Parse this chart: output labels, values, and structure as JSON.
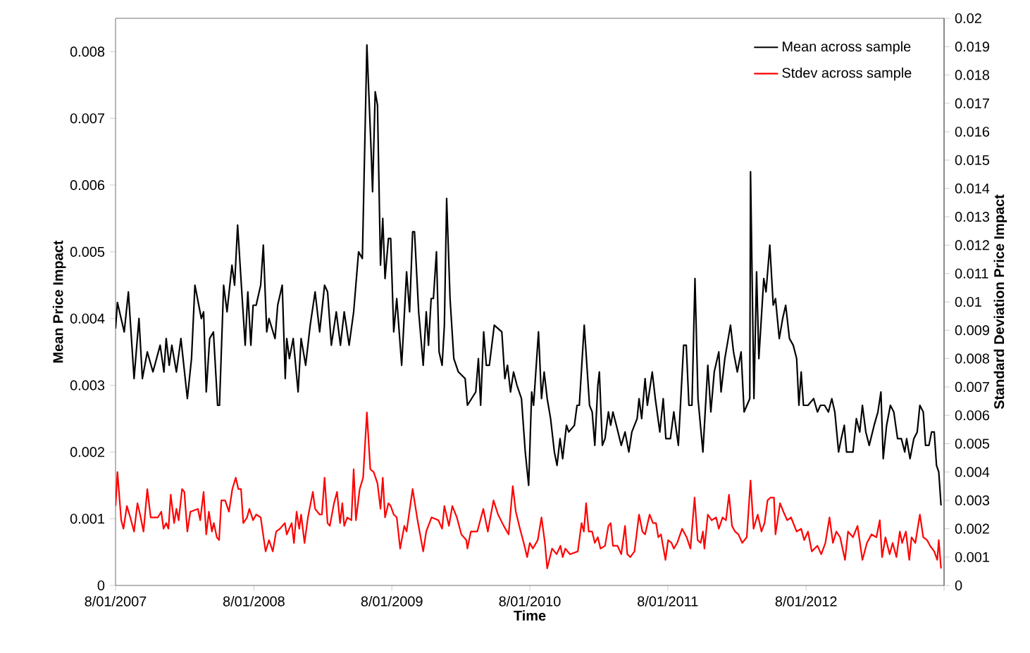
{
  "chart_data": {
    "type": "line",
    "xlabel": "Time",
    "ylabel": "Mean Price Impact",
    "y2label": "Standard Deviation Price Impact",
    "legend": "top right",
    "grid": false,
    "xlim": [
      "2007-08-01",
      "2013-08-01"
    ],
    "xticks": [
      {
        "value": "2007-08-01",
        "label": "8/01/2007"
      },
      {
        "value": "2008-08-01",
        "label": "8/01/2008"
      },
      {
        "value": "2009-08-01",
        "label": "8/01/2009"
      },
      {
        "value": "2010-08-01",
        "label": "8/01/2010"
      },
      {
        "value": "2011-08-01",
        "label": "8/01/2011"
      },
      {
        "value": "2012-08-01",
        "label": "8/01/2012"
      },
      {
        "value": "2013-08-01",
        "label": null
      }
    ],
    "ylim": [
      0,
      0.0085
    ],
    "yticks": [
      0,
      0.001,
      0.002,
      0.003,
      0.004,
      0.005,
      0.006,
      0.007,
      0.008
    ],
    "y2lim": [
      0,
      0.02
    ],
    "y2ticks": [
      0,
      0.001,
      0.002,
      0.003,
      0.004,
      0.005,
      0.006,
      0.007,
      0.008,
      0.009,
      0.01,
      0.011,
      0.012,
      0.013,
      0.014,
      0.015,
      0.016,
      0.017,
      0.018,
      0.019,
      0.02
    ],
    "series": [
      {
        "name": "Mean across sample",
        "color": "#000000",
        "x": [
          "2007-08-01",
          "2007-08-06",
          "2007-08-24",
          "2007-09-04",
          "2007-09-19",
          "2007-10-02",
          "2007-10-11",
          "2007-10-24",
          "2007-11-08",
          "2007-11-27",
          "2007-12-07",
          "2007-12-13",
          "2007-12-21",
          "2007-12-28",
          "2008-01-09",
          "2008-01-21",
          "2008-02-07",
          "2008-02-18",
          "2008-02-27",
          "2008-03-15",
          "2008-03-21",
          "2008-03-28",
          "2008-04-06",
          "2008-04-16",
          "2008-04-27",
          "2008-05-02",
          "2008-05-13",
          "2008-05-22",
          "2008-06-04",
          "2008-06-11",
          "2008-06-19",
          "2008-06-30",
          "2008-07-09",
          "2008-07-16",
          "2008-07-24",
          "2008-07-30",
          "2008-08-07",
          "2008-08-19",
          "2008-08-26",
          "2008-09-04",
          "2008-09-10",
          "2008-09-26",
          "2008-10-03",
          "2008-10-15",
          "2008-10-23",
          "2008-10-27",
          "2008-11-03",
          "2008-11-13",
          "2008-11-26",
          "2008-12-04",
          "2008-12-16",
          "2008-12-28",
          "2009-01-10",
          "2009-01-22",
          "2009-02-04",
          "2009-02-12",
          "2009-02-22",
          "2009-03-07",
          "2009-03-18",
          "2009-03-28",
          "2009-04-10",
          "2009-04-22",
          "2009-05-05",
          "2009-05-15",
          "2009-05-27",
          "2009-06-08",
          "2009-06-11",
          "2009-06-18",
          "2009-06-24",
          "2009-07-02",
          "2009-07-08",
          "2009-07-14",
          "2009-07-23",
          "2009-07-29",
          "2009-08-06",
          "2009-08-14",
          "2009-08-27",
          "2009-09-09",
          "2009-09-17",
          "2009-09-25",
          "2009-09-30",
          "2009-10-11",
          "2009-10-23",
          "2009-10-31",
          "2009-11-06",
          "2009-11-13",
          "2009-11-19",
          "2009-11-27",
          "2009-12-04",
          "2009-12-12",
          "2009-12-18",
          "2009-12-24",
          "2010-01-02",
          "2010-01-12",
          "2010-01-24",
          "2010-02-11",
          "2010-02-17",
          "2010-03-11",
          "2010-03-18",
          "2010-03-24",
          "2010-04-01",
          "2010-04-08",
          "2010-04-16",
          "2010-04-29",
          "2010-05-19",
          "2010-05-27",
          "2010-06-03",
          "2010-06-11",
          "2010-06-19",
          "2010-06-28",
          "2010-07-10",
          "2010-07-20",
          "2010-07-29",
          "2010-08-06",
          "2010-08-11",
          "2010-08-24",
          "2010-09-01",
          "2010-09-08",
          "2010-09-16",
          "2010-09-25",
          "2010-10-05",
          "2010-10-12",
          "2010-10-20",
          "2010-10-27",
          "2010-11-06",
          "2010-11-12",
          "2010-11-27",
          "2010-12-04",
          "2010-12-10",
          "2010-12-23",
          "2011-01-06",
          "2011-01-13",
          "2011-01-20",
          "2011-01-28",
          "2011-02-01",
          "2011-02-09",
          "2011-02-16",
          "2011-02-25",
          "2011-03-03",
          "2011-03-09",
          "2011-03-18",
          "2011-03-31",
          "2011-04-10",
          "2011-04-20",
          "2011-04-28",
          "2011-05-12",
          "2011-05-17",
          "2011-05-24",
          "2011-06-02",
          "2011-06-08",
          "2011-06-21",
          "2011-06-29",
          "2011-07-11",
          "2011-07-20",
          "2011-07-27",
          "2011-08-08",
          "2011-08-17",
          "2011-08-29",
          "2011-09-12",
          "2011-09-19",
          "2011-09-26",
          "2011-10-04",
          "2011-10-12",
          "2011-10-20",
          "2011-11-02",
          "2011-11-15",
          "2011-11-23",
          "2011-12-02",
          "2011-12-14",
          "2011-12-20",
          "2011-12-30",
          "2012-01-14",
          "2012-01-22",
          "2012-02-01",
          "2012-02-11",
          "2012-02-19",
          "2012-03-05",
          "2012-03-07",
          "2012-03-16",
          "2012-03-23",
          "2012-03-29",
          "2012-04-11",
          "2012-04-17",
          "2012-04-27",
          "2012-05-06",
          "2012-05-12",
          "2012-05-22",
          "2012-05-31",
          "2012-06-08",
          "2012-06-18",
          "2012-06-28",
          "2012-07-07",
          "2012-07-13",
          "2012-07-19",
          "2012-07-25",
          "2012-08-06",
          "2012-08-21",
          "2012-08-31",
          "2012-09-08",
          "2012-09-19",
          "2012-09-29",
          "2012-10-08",
          "2012-10-16",
          "2012-10-26",
          "2012-11-02",
          "2012-11-10",
          "2012-11-16",
          "2012-12-03",
          "2012-12-12",
          "2012-12-21",
          "2012-12-28",
          "2013-01-06",
          "2013-01-15",
          "2013-01-28",
          "2013-02-07",
          "2013-02-15",
          "2013-02-21",
          "2013-03-02",
          "2013-03-12",
          "2013-03-21",
          "2013-03-31",
          "2013-04-10",
          "2013-04-19",
          "2013-04-24",
          "2013-05-03",
          "2013-05-13",
          "2013-05-22",
          "2013-05-29",
          "2013-06-07",
          "2013-06-13",
          "2013-06-22",
          "2013-06-29",
          "2013-07-06",
          "2013-07-12",
          "2013-07-18",
          "2013-07-24"
        ],
        "values": [
          0.00385,
          0.00424,
          0.0038,
          0.0044,
          0.0031,
          0.004,
          0.0031,
          0.0035,
          0.0032,
          0.0036,
          0.0032,
          0.0037,
          0.0033,
          0.0036,
          0.0032,
          0.0037,
          0.0028,
          0.0034,
          0.0045,
          0.004,
          0.0041,
          0.0029,
          0.0037,
          0.0038,
          0.0027,
          0.0027,
          0.0045,
          0.0041,
          0.0048,
          0.0045,
          0.0054,
          0.0044,
          0.0036,
          0.0044,
          0.0036,
          0.0042,
          0.0042,
          0.0045,
          0.0051,
          0.0038,
          0.004,
          0.0037,
          0.0042,
          0.0045,
          0.0031,
          0.0037,
          0.0034,
          0.0037,
          0.0029,
          0.0037,
          0.0033,
          0.0039,
          0.0044,
          0.0038,
          0.0045,
          0.0044,
          0.0036,
          0.0041,
          0.0036,
          0.0041,
          0.0036,
          0.0041,
          0.005,
          0.0049,
          0.0081,
          0.0064,
          0.0059,
          0.0074,
          0.0072,
          0.0048,
          0.0055,
          0.0046,
          0.0052,
          0.0052,
          0.0038,
          0.0043,
          0.0033,
          0.0047,
          0.0041,
          0.0053,
          0.0053,
          0.0041,
          0.0033,
          0.0041,
          0.0036,
          0.0043,
          0.0043,
          0.005,
          0.0035,
          0.0033,
          0.0039,
          0.0058,
          0.0043,
          0.0034,
          0.0032,
          0.0031,
          0.0027,
          0.0029,
          0.0034,
          0.0027,
          0.0038,
          0.0033,
          0.0033,
          0.0039,
          0.0038,
          0.0031,
          0.0033,
          0.0029,
          0.0032,
          0.003,
          0.0028,
          0.002,
          0.0015,
          0.0029,
          0.0027,
          0.0038,
          0.0028,
          0.0032,
          0.0028,
          0.0025,
          0.002,
          0.0018,
          0.0022,
          0.0019,
          0.0024,
          0.0023,
          0.0024,
          0.0027,
          0.0027,
          0.0039,
          0.0027,
          0.0026,
          0.0021,
          0.003,
          0.0032,
          0.0021,
          0.0022,
          0.0026,
          0.0024,
          0.0026,
          0.0024,
          0.0021,
          0.0023,
          0.002,
          0.0023,
          0.0025,
          0.0028,
          0.0025,
          0.0031,
          0.0027,
          0.0032,
          0.0028,
          0.0023,
          0.0028,
          0.0022,
          0.0022,
          0.0026,
          0.0021,
          0.0036,
          0.0036,
          0.0027,
          0.0027,
          0.0046,
          0.0028,
          0.002,
          0.0033,
          0.0026,
          0.0032,
          0.0035,
          0.0029,
          0.0034,
          0.0039,
          0.0035,
          0.0032,
          0.0035,
          0.0026,
          0.0028,
          0.0062,
          0.0028,
          0.0047,
          0.0034,
          0.0046,
          0.0044,
          0.0051,
          0.0042,
          0.0043,
          0.0037,
          0.004,
          0.0042,
          0.0037,
          0.0036,
          0.0034,
          0.0027,
          0.0032,
          0.0027,
          0.0027,
          0.0028,
          0.0026,
          0.0027,
          0.0027,
          0.0026,
          0.0028,
          0.0026,
          0.002,
          0.0022,
          0.0024,
          0.002,
          0.002,
          0.0025,
          0.0023,
          0.0027,
          0.0023,
          0.0021,
          0.0024,
          0.0026,
          0.0029,
          0.0019,
          0.0024,
          0.0027,
          0.0026,
          0.0022,
          0.0022,
          0.002,
          0.0022,
          0.0019,
          0.0022,
          0.0023,
          0.0027,
          0.0026,
          0.0021,
          0.0021,
          0.0023,
          0.0023,
          0.0018,
          0.0017,
          0.0012
        ]
      },
      {
        "name": "Stdev across sample",
        "color": "#ff0000",
        "axis": "y2",
        "x": [
          "2007-08-01",
          "2007-08-06",
          "2007-08-16",
          "2007-08-22",
          "2007-08-31",
          "2007-09-09",
          "2007-09-19",
          "2007-09-28",
          "2007-10-05",
          "2007-10-14",
          "2007-10-24",
          "2007-11-02",
          "2007-11-21",
          "2007-11-30",
          "2007-12-06",
          "2007-12-13",
          "2007-12-19",
          "2007-12-25",
          "2008-01-03",
          "2008-01-09",
          "2008-01-15",
          "2008-01-24",
          "2008-01-30",
          "2008-02-07",
          "2008-02-15",
          "2008-03-06",
          "2008-03-12",
          "2008-03-21",
          "2008-03-28",
          "2008-04-04",
          "2008-04-12",
          "2008-04-17",
          "2008-04-25",
          "2008-05-01",
          "2008-05-07",
          "2008-05-17",
          "2008-05-27",
          "2008-06-05",
          "2008-06-14",
          "2008-06-21",
          "2008-06-28",
          "2008-07-04",
          "2008-07-14",
          "2008-07-20",
          "2008-07-30",
          "2008-08-07",
          "2008-08-19",
          "2008-09-01",
          "2008-09-10",
          "2008-09-20",
          "2008-09-29",
          "2008-10-09",
          "2008-10-22",
          "2008-10-27",
          "2008-11-09",
          "2008-11-15",
          "2008-11-22",
          "2008-11-29",
          "2008-12-04",
          "2008-12-13",
          "2008-12-22",
          "2009-01-04",
          "2009-01-10",
          "2009-01-22",
          "2009-01-28",
          "2009-02-04",
          "2009-02-12",
          "2009-02-18",
          "2009-03-01",
          "2009-03-09",
          "2009-03-17",
          "2009-03-23",
          "2009-03-28",
          "2009-04-05",
          "2009-04-16",
          "2009-04-22",
          "2009-04-28",
          "2009-05-08",
          "2009-05-17",
          "2009-05-27",
          "2009-06-05",
          "2009-06-14",
          "2009-06-24",
          "2009-07-02",
          "2009-07-08",
          "2009-07-14",
          "2009-07-23",
          "2009-07-29",
          "2009-08-06",
          "2009-08-14",
          "2009-08-23",
          "2009-09-03",
          "2009-09-09",
          "2009-09-25",
          "2009-10-08",
          "2009-10-23",
          "2009-10-31",
          "2009-11-14",
          "2009-12-02",
          "2009-12-12",
          "2009-12-18",
          "2009-12-30",
          "2010-01-08",
          "2010-01-20",
          "2010-02-01",
          "2010-02-14",
          "2010-02-17",
          "2010-02-26",
          "2010-03-15",
          "2010-03-31",
          "2010-04-12",
          "2010-04-27",
          "2010-05-09",
          "2010-05-24",
          "2010-06-06",
          "2010-06-17",
          "2010-06-25",
          "2010-07-06",
          "2010-07-16",
          "2010-07-25",
          "2010-08-01",
          "2010-08-09",
          "2010-08-22",
          "2010-09-01",
          "2010-09-10",
          "2010-09-16",
          "2010-09-29",
          "2010-10-11",
          "2010-10-21",
          "2010-10-27",
          "2010-11-03",
          "2010-11-15",
          "2010-12-06",
          "2010-12-16",
          "2010-12-22",
          "2010-12-28",
          "2011-01-04",
          "2011-01-13",
          "2011-01-20",
          "2011-01-28",
          "2011-02-04",
          "2011-02-16",
          "2011-02-25",
          "2011-03-03",
          "2011-03-09",
          "2011-03-21",
          "2011-03-31",
          "2011-04-10",
          "2011-04-16",
          "2011-04-24",
          "2011-05-05",
          "2011-05-17",
          "2011-05-26",
          "2011-06-02",
          "2011-06-14",
          "2011-06-23",
          "2011-07-01",
          "2011-07-07",
          "2011-07-14",
          "2011-07-26",
          "2011-08-02",
          "2011-08-11",
          "2011-08-17",
          "2011-08-26",
          "2011-09-08",
          "2011-09-20",
          "2011-09-30",
          "2011-10-11",
          "2011-10-19",
          "2011-10-27",
          "2011-11-02",
          "2011-11-06",
          "2011-11-15",
          "2011-11-25",
          "2011-12-07",
          "2011-12-14",
          "2011-12-24",
          "2012-01-02",
          "2012-01-10",
          "2012-01-18",
          "2012-01-26",
          "2012-02-04",
          "2012-02-14",
          "2012-02-26",
          "2012-03-07",
          "2012-03-15",
          "2012-03-26",
          "2012-04-05",
          "2012-04-13",
          "2012-04-21",
          "2012-04-29",
          "2012-05-08",
          "2012-05-12",
          "2012-05-24",
          "2012-06-02",
          "2012-06-12",
          "2012-06-22",
          "2012-07-07",
          "2012-07-19",
          "2012-07-27",
          "2012-08-06",
          "2012-08-16",
          "2012-08-31",
          "2012-09-10",
          "2012-09-21",
          "2012-10-02",
          "2012-10-11",
          "2012-10-20",
          "2012-10-30",
          "2012-11-12",
          "2012-11-20",
          "2012-12-03",
          "2012-12-15",
          "2012-12-28",
          "2013-01-09",
          "2013-01-21",
          "2013-02-03",
          "2013-02-12",
          "2013-02-18",
          "2013-02-27",
          "2013-03-10",
          "2013-03-18",
          "2013-03-28",
          "2013-04-06",
          "2013-04-12",
          "2013-04-22",
          "2013-05-01",
          "2013-05-07",
          "2013-05-17",
          "2013-05-29",
          "2013-06-07",
          "2013-06-17",
          "2013-06-25",
          "2013-07-06",
          "2013-07-14",
          "2013-07-18",
          "2013-07-24"
        ],
        "values": [
          0.0028,
          0.004,
          0.0023,
          0.002,
          0.0028,
          0.0024,
          0.0019,
          0.0029,
          0.0025,
          0.0019,
          0.0034,
          0.0024,
          0.0024,
          0.0026,
          0.002,
          0.0022,
          0.002,
          0.0032,
          0.0022,
          0.0027,
          0.0023,
          0.0034,
          0.0033,
          0.0019,
          0.0026,
          0.0027,
          0.0023,
          0.0033,
          0.0018,
          0.0026,
          0.0019,
          0.0022,
          0.0017,
          0.0016,
          0.003,
          0.003,
          0.0026,
          0.0034,
          0.0038,
          0.0034,
          0.0034,
          0.0022,
          0.0024,
          0.0027,
          0.0023,
          0.0025,
          0.0024,
          0.0012,
          0.0016,
          0.0012,
          0.0019,
          0.002,
          0.0022,
          0.0018,
          0.0022,
          0.0015,
          0.0026,
          0.002,
          0.0025,
          0.0015,
          0.0024,
          0.0033,
          0.0027,
          0.0025,
          0.0025,
          0.0038,
          0.0022,
          0.0021,
          0.0029,
          0.0033,
          0.0022,
          0.0029,
          0.0021,
          0.0024,
          0.0023,
          0.0041,
          0.0023,
          0.0034,
          0.0038,
          0.0061,
          0.0041,
          0.004,
          0.0036,
          0.0027,
          0.0038,
          0.0024,
          0.0029,
          0.0028,
          0.0025,
          0.0024,
          0.0013,
          0.0021,
          0.0019,
          0.0034,
          0.0023,
          0.0012,
          0.0019,
          0.0024,
          0.0023,
          0.002,
          0.0028,
          0.0021,
          0.0028,
          0.0024,
          0.0018,
          0.0016,
          0.0013,
          0.0019,
          0.0019,
          0.0027,
          0.0019,
          0.003,
          0.0025,
          0.0021,
          0.0018,
          0.0035,
          0.0026,
          0.002,
          0.0015,
          0.001,
          0.0015,
          0.0013,
          0.0016,
          0.0024,
          0.0015,
          0.0006,
          0.0013,
          0.0011,
          0.0014,
          0.001,
          0.0013,
          0.0011,
          0.0012,
          0.0022,
          0.0019,
          0.0029,
          0.0019,
          0.0019,
          0.0015,
          0.0017,
          0.0013,
          0.0014,
          0.0021,
          0.0022,
          0.0014,
          0.0014,
          0.0011,
          0.0021,
          0.0011,
          0.001,
          0.0012,
          0.0025,
          0.0019,
          0.0018,
          0.0025,
          0.0022,
          0.0022,
          0.0017,
          0.0018,
          0.0009,
          0.0016,
          0.0015,
          0.0013,
          0.0015,
          0.002,
          0.0017,
          0.0013,
          0.0031,
          0.0016,
          0.0015,
          0.0019,
          0.0013,
          0.0025,
          0.0023,
          0.0024,
          0.002,
          0.0024,
          0.0023,
          0.0032,
          0.0021,
          0.0019,
          0.0018,
          0.0015,
          0.0017,
          0.0037,
          0.002,
          0.0025,
          0.0019,
          0.0022,
          0.003,
          0.0031,
          0.0031,
          0.0018,
          0.0029,
          0.0026,
          0.0023,
          0.0024,
          0.0019,
          0.002,
          0.0016,
          0.0019,
          0.0012,
          0.0014,
          0.0011,
          0.0015,
          0.0024,
          0.0015,
          0.0019,
          0.0017,
          0.0009,
          0.0019,
          0.0017,
          0.0021,
          0.0009,
          0.0015,
          0.0018,
          0.0017,
          0.0023,
          0.001,
          0.0017,
          0.0011,
          0.0015,
          0.001,
          0.0019,
          0.0015,
          0.0019,
          0.0009,
          0.0017,
          0.0015,
          0.0025,
          0.0017,
          0.0016,
          0.0014,
          0.0012,
          0.0009,
          0.0016,
          0.0006
        ]
      }
    ]
  }
}
